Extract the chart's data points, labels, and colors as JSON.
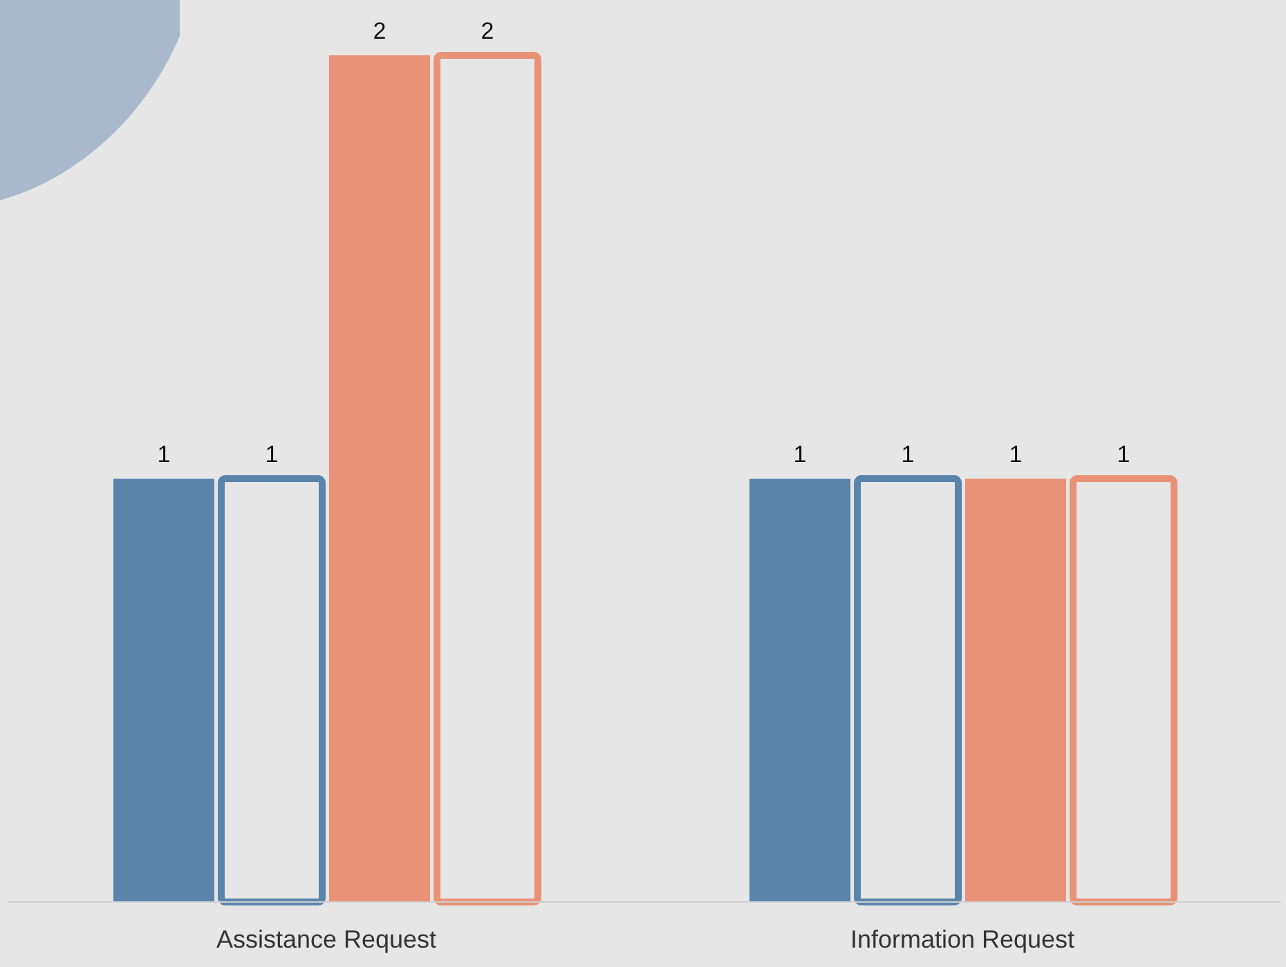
{
  "chart_data": {
    "type": "bar",
    "categories": [
      "Assistance Request",
      "Information Request"
    ],
    "series": [
      {
        "color": "#5b84ab",
        "values": [
          1,
          1
        ]
      },
      {
        "color": "#5b84ab",
        "values": [
          1,
          1
        ],
        "line_style": "solid"
      },
      {
        "color": "#e99277",
        "values": [
          2,
          1
        ]
      },
      {
        "color": "#e99277",
        "values": [
          2,
          1
        ],
        "line_style": "solid"
      }
    ],
    "data_labels": true,
    "legend": false,
    "grid": false
  }
}
